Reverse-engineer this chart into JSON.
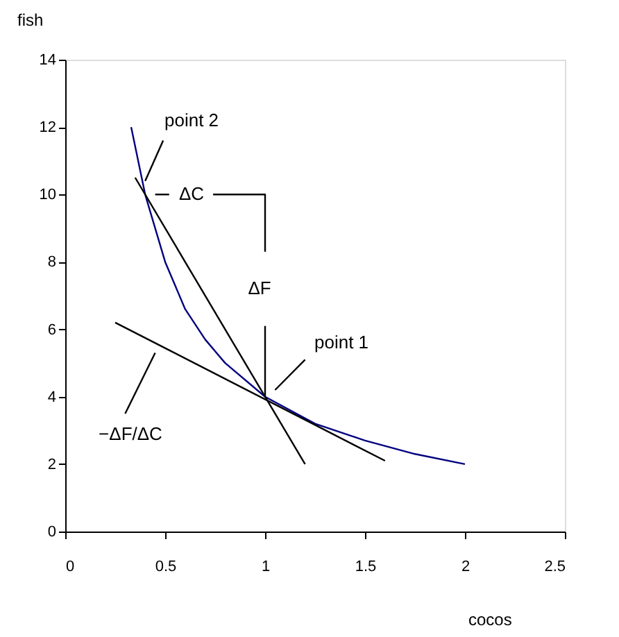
{
  "chart_data": {
    "type": "line",
    "xlabel": "cocos",
    "ylabel": "fish",
    "xlim": [
      0,
      2.5
    ],
    "xticks": [
      0,
      0.5,
      1,
      1.5,
      2,
      2.5
    ],
    "ylim": [
      0,
      14
    ],
    "yticks": [
      0,
      2,
      4,
      6,
      8,
      10,
      12,
      14
    ],
    "grid": false,
    "legend": false,
    "marker": "none",
    "line_style": "solid",
    "series": [
      {
        "color": "#000080",
        "x": [
          0.33,
          0.4,
          0.5,
          0.6,
          0.7,
          0.8,
          1,
          1.25,
          1.5,
          1.75,
          2
        ],
        "values": [
          12,
          10,
          8,
          6.6,
          5.7,
          5,
          4,
          3.2,
          2.7,
          2.3,
          2
        ]
      },
      {
        "color": "#000000",
        "x": [
          0.35,
          1.2
        ],
        "values": [
          10.5,
          2
        ]
      },
      {
        "color": "#000000",
        "x": [
          0.25,
          1.6
        ],
        "values": [
          6.2,
          2.1
        ]
      },
      {
        "color": "#000000",
        "x": [
          0.45,
          0.52
        ],
        "values": [
          10,
          10
        ]
      },
      {
        "color": "#000000",
        "x": [
          0.74,
          1,
          1
        ],
        "values": [
          10,
          10,
          8.3
        ]
      },
      {
        "color": "#000000",
        "x": [
          1,
          1
        ],
        "values": [
          6.1,
          4
        ]
      },
      {
        "color": "#000000",
        "x": [
          0.49,
          0.4
        ],
        "values": [
          11.6,
          10.4
        ]
      },
      {
        "color": "#000000",
        "x": [
          1.2,
          1.05
        ],
        "values": [
          5.1,
          4.2
        ]
      },
      {
        "color": "#000000",
        "x": [
          0.3,
          0.45
        ],
        "values": [
          3.5,
          5.3
        ]
      }
    ],
    "annotations": [
      "point 2",
      "ΔC",
      "ΔF",
      "point 1",
      "−ΔF/ΔC"
    ]
  }
}
